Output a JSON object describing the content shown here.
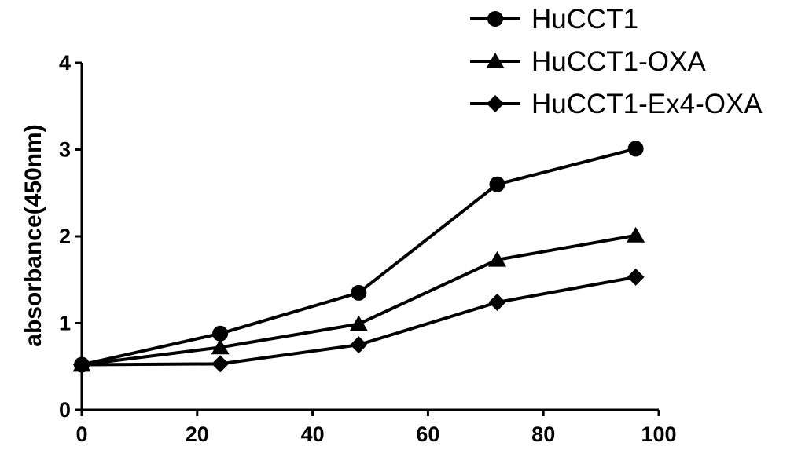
{
  "chart_data": {
    "type": "line",
    "title": "",
    "xlabel": "",
    "ylabel": "absorbance(450nm)",
    "xlim": [
      0,
      100
    ],
    "ylim": [
      0,
      4
    ],
    "x_ticks": [
      "0",
      "20",
      "40",
      "60",
      "80",
      "100"
    ],
    "y_ticks": [
      "0",
      "1",
      "2",
      "3",
      "4"
    ],
    "x": [
      0,
      24,
      48,
      72,
      96
    ],
    "grid": false,
    "legend_position": "top-right",
    "series": [
      {
        "name": "HuCCT1",
        "marker": "circle",
        "values": [
          0.52,
          0.88,
          1.35,
          2.6,
          3.01
        ]
      },
      {
        "name": "HuCCT1-OXA",
        "marker": "triangle",
        "values": [
          0.52,
          0.72,
          0.99,
          1.73,
          2.01
        ]
      },
      {
        "name": "HuCCT1-Ex4-OXA",
        "marker": "diamond",
        "values": [
          0.52,
          0.53,
          0.75,
          1.24,
          1.53
        ]
      }
    ],
    "colors": {
      "line": "#000000",
      "marker": "#000000"
    }
  }
}
